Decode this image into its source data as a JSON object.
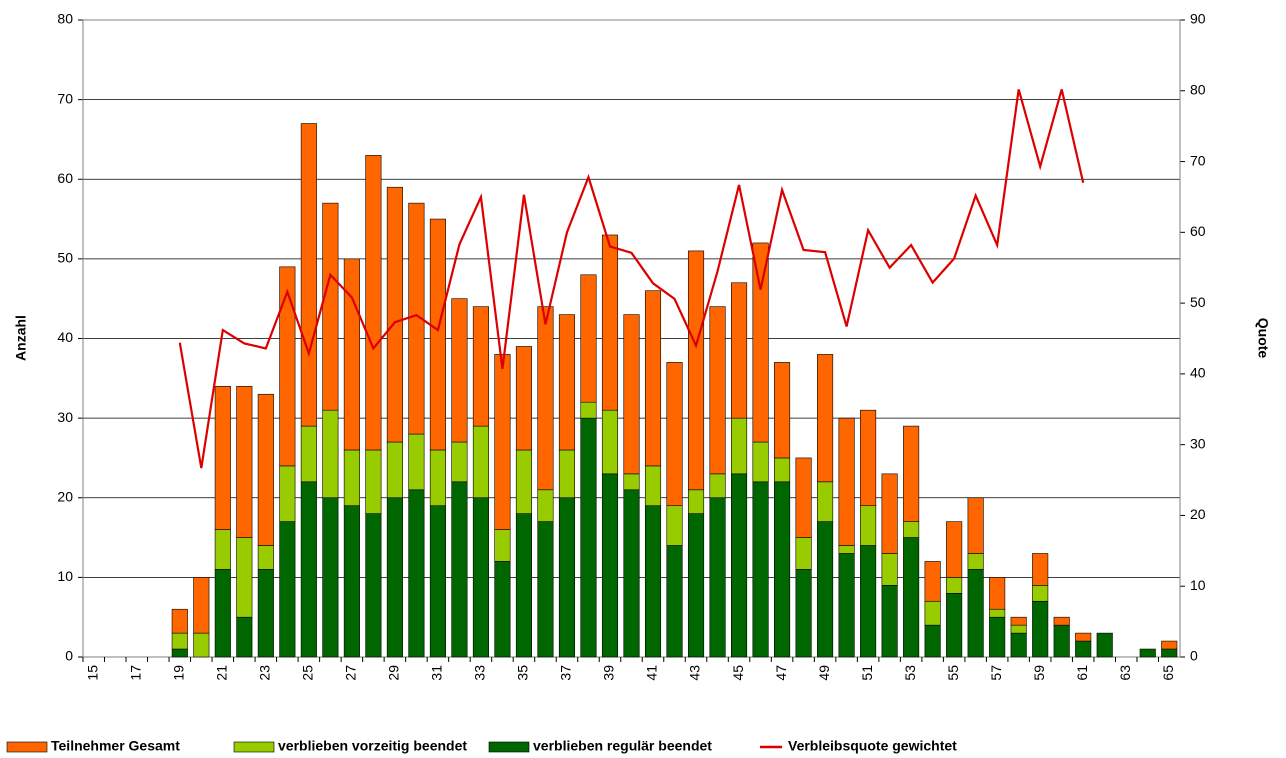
{
  "chart_data": {
    "type": "bar",
    "categories": [
      "15",
      null,
      "17",
      null,
      "19",
      null,
      "21",
      null,
      "23",
      null,
      "25",
      null,
      "27",
      null,
      "29",
      null,
      "31",
      null,
      "33",
      null,
      "35",
      null,
      "37",
      null,
      "39",
      null,
      "41",
      null,
      "43",
      null,
      "45",
      null,
      "47",
      null,
      "49",
      null,
      "51",
      null,
      "53",
      null,
      "55",
      null,
      "57",
      null,
      "59",
      null,
      "61",
      null,
      "63",
      null,
      "65"
    ],
    "ylabel": "Anzahl",
    "y2label": "Quote",
    "ylim": [
      0,
      80
    ],
    "yticks": [
      0,
      10,
      20,
      30,
      40,
      50,
      60,
      70,
      80
    ],
    "y2lim": [
      0,
      90
    ],
    "y2ticks": [
      0,
      10,
      20,
      30,
      40,
      50,
      60,
      70,
      80,
      90
    ],
    "grid": true,
    "legend": "bottom",
    "stacked": true,
    "series": [
      {
        "name": "Teilnehmer Gesamt",
        "color": "#ff6600",
        "type": "bar",
        "values": [
          0,
          0,
          0,
          0,
          3,
          7,
          18,
          19,
          19,
          25,
          38,
          26,
          24,
          37,
          32,
          29,
          29,
          18,
          15,
          22,
          13,
          23,
          17,
          16,
          22,
          20,
          22,
          18,
          30,
          21,
          17,
          25,
          12,
          10,
          16,
          16,
          12,
          10,
          12,
          5,
          7,
          7,
          4,
          1,
          4,
          1,
          1,
          0,
          0,
          0,
          1
        ]
      },
      {
        "name": "verblieben vorzeitig beendet",
        "color": "#99cc00",
        "type": "bar",
        "values": [
          0,
          0,
          0,
          0,
          2,
          3,
          5,
          10,
          3,
          7,
          7,
          11,
          7,
          8,
          7,
          7,
          7,
          5,
          9,
          4,
          8,
          4,
          6,
          2,
          8,
          2,
          5,
          5,
          3,
          3,
          7,
          5,
          3,
          4,
          5,
          1,
          5,
          4,
          2,
          3,
          2,
          2,
          1,
          1,
          2,
          0,
          0,
          0,
          0,
          0,
          0
        ]
      },
      {
        "name": "verblieben regulär beendet",
        "color": "#006600",
        "type": "bar",
        "values": [
          0,
          0,
          0,
          0,
          1,
          0,
          11,
          5,
          11,
          17,
          22,
          20,
          19,
          18,
          20,
          21,
          19,
          22,
          20,
          12,
          18,
          17,
          20,
          30,
          23,
          21,
          19,
          14,
          18,
          20,
          23,
          22,
          22,
          11,
          17,
          13,
          14,
          9,
          15,
          4,
          8,
          11,
          5,
          3,
          7,
          4,
          2,
          3,
          0,
          1,
          1
        ]
      },
      {
        "name": "Verbleibsquote gewichtet",
        "color": "#dd0000",
        "type": "line",
        "axis": "y2",
        "values": [
          null,
          null,
          null,
          null,
          44.4,
          26.7,
          46.2,
          44.3,
          43.6,
          51.6,
          42.9,
          54,
          50.8,
          43.6,
          47.3,
          48.3,
          46.2,
          58.3,
          65,
          40.7,
          65.3,
          47,
          60,
          67.8,
          58,
          57.1,
          52.8,
          50.6,
          44,
          54.5,
          66.7,
          51.9,
          66,
          57.5,
          57.2,
          46.7,
          60.3,
          55,
          58.2,
          52.9,
          56.3,
          65.2,
          58.2,
          80.2,
          69.3,
          80.2,
          67,
          null,
          null,
          null,
          null
        ]
      }
    ]
  }
}
